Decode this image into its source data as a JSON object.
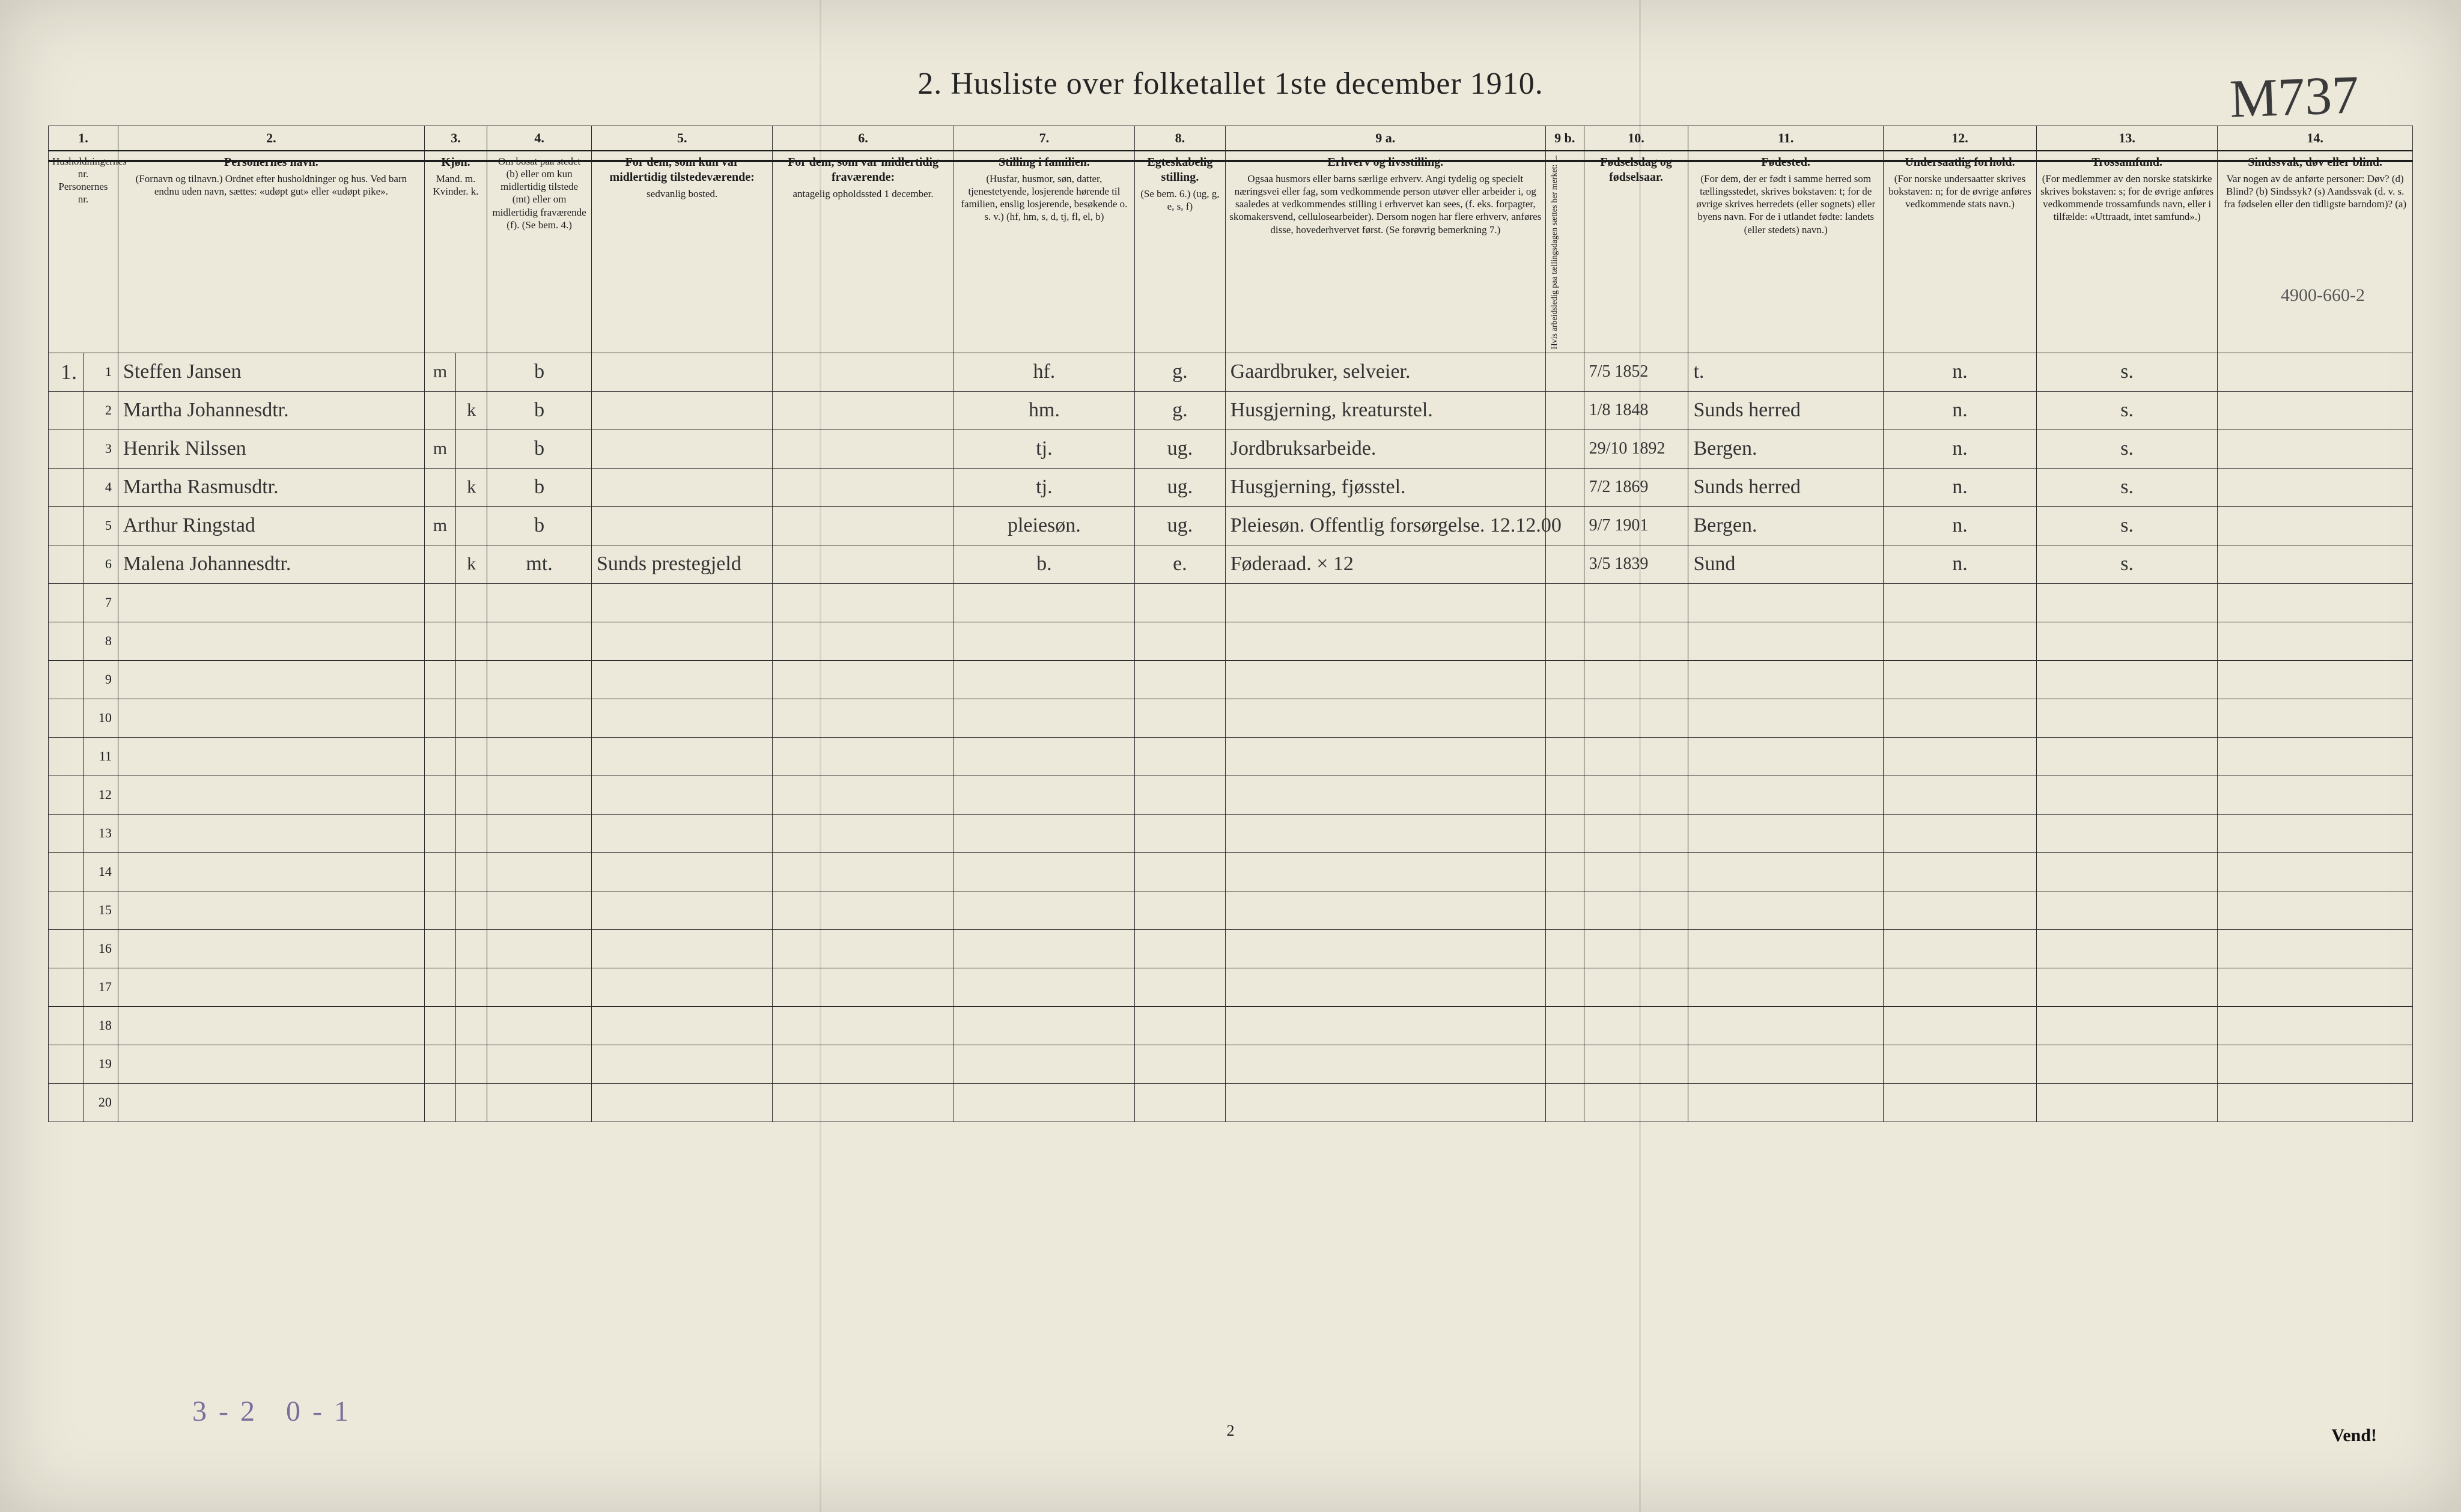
{
  "title": "2.  Husliste over folketallet 1ste december 1910.",
  "corner_note": "M737",
  "above_header_note": "4900-660-2",
  "bottom_left_note": "3-2 0-1",
  "page_number": "2",
  "vend_label": "Vend!",
  "columns": [
    {
      "no": "1.",
      "head": "",
      "sub": "Husholdningernes nr.  Personernes nr."
    },
    {
      "no": "2.",
      "head": "Personernes navn.",
      "sub": "(Fornavn og tilnavn.) Ordnet efter husholdninger og hus. Ved barn endnu uden navn, sættes: «udøpt gut» eller «udøpt pike»."
    },
    {
      "no": "3.",
      "head": "Kjøn.",
      "sub": "Mand. m.   Kvinder. k."
    },
    {
      "no": "4.",
      "head": "Om bosat paa stedet (b) eller om kun midlertidig tilstede (mt) eller om midlertidig fraværende (f). (Se bem. 4.)",
      "sub": ""
    },
    {
      "no": "5.",
      "head": "For dem, som kun var midlertidig tilstedeværende:",
      "sub": "sedvanlig bosted."
    },
    {
      "no": "6.",
      "head": "For dem, som var midlertidig fraværende:",
      "sub": "antagelig opholdssted 1 december."
    },
    {
      "no": "7.",
      "head": "Stilling i familien.",
      "sub": "(Husfar, husmor, søn, datter, tjenestetyende, losjerende hørende til familien, enslig losjerende, besøkende o. s. v.) (hf, hm, s, d, tj, fl, el, b)"
    },
    {
      "no": "8.",
      "head": "Egteskabelig stilling.",
      "sub": "(Se bem. 6.) (ug, g, e, s, f)"
    },
    {
      "no": "9 a.",
      "head": "Erhverv og livsstilling.",
      "sub": "Ogsaa husmors eller barns særlige erhverv. Angi tydelig og specielt næringsvei eller fag, som vedkommende person utøver eller arbeider i, og saaledes at vedkommendes stilling i erhvervet kan sees, (f. eks. forpagter, skomakersvend, cellulosearbeider). Dersom nogen har flere erhverv, anføres disse, hovederhvervet først. (Se forøvrig bemerkning 7.)"
    },
    {
      "no": "9 b.",
      "head": "",
      "sub": "Hvis arbeidsledig paa tællingsdagen sættes her merket: L."
    },
    {
      "no": "10.",
      "head": "Fødselsdag og fødselsaar.",
      "sub": ""
    },
    {
      "no": "11.",
      "head": "Fødested.",
      "sub": "(For dem, der er født i samme herred som tællingsstedet, skrives bokstaven: t; for de øvrige skrives herredets (eller sognets) eller byens navn. For de i utlandet fødte: landets (eller stedets) navn.)"
    },
    {
      "no": "12.",
      "head": "Undersaatlig forhold.",
      "sub": "(For norske undersaatter skrives bokstaven: n; for de øvrige anføres vedkommende stats navn.)"
    },
    {
      "no": "13.",
      "head": "Trossamfund.",
      "sub": "(For medlemmer av den norske statskirke skrives bokstaven: s; for de øvrige anføres vedkommende trossamfunds navn, eller i tilfælde: «Uttraadt, intet samfund».)"
    },
    {
      "no": "14.",
      "head": "Sindssvak, døv eller blind.",
      "sub": "Var nogen av de anførte personer: Døv? (d) Blind? (b) Sindssyk? (s) Aandssvak (d. v. s. fra fødselen eller den tidligste barndom)? (a)"
    }
  ],
  "rows": [
    {
      "h": "1.",
      "n": "1",
      "name": "Steffen Jansen",
      "mk": "m",
      "b": "b",
      "c5": "",
      "c6": "",
      "fam": "hf.",
      "egt": "g.",
      "erh": "Gaardbruker, selveier.",
      "l": "",
      "dob": "7/5 1852",
      "fod": "t.",
      "und": "n.",
      "tro": "s.",
      "sind": ""
    },
    {
      "h": "",
      "n": "2",
      "name": "Martha Johannesdtr.",
      "mk": "k",
      "b": "b",
      "c5": "",
      "c6": "",
      "fam": "hm.",
      "egt": "g.",
      "erh": "Husgjerning, kreaturstel.",
      "l": "",
      "dob": "1/8 1848",
      "fod": "Sunds herred",
      "und": "n.",
      "tro": "s.",
      "sind": ""
    },
    {
      "h": "",
      "n": "3",
      "name": "Henrik Nilssen",
      "mk": "m",
      "b": "b",
      "c5": "",
      "c6": "",
      "fam": "tj.",
      "egt": "ug.",
      "erh": "Jordbruksarbeide.",
      "l": "",
      "dob": "29/10 1892",
      "fod": "Bergen.",
      "und": "n.",
      "tro": "s.",
      "sind": ""
    },
    {
      "h": "",
      "n": "4",
      "name": "Martha Rasmusdtr.",
      "mk": "k",
      "b": "b",
      "c5": "",
      "c6": "",
      "fam": "tj.",
      "egt": "ug.",
      "erh": "Husgjerning, fjøsstel.",
      "l": "",
      "dob": "7/2 1869",
      "fod": "Sunds herred",
      "und": "n.",
      "tro": "s.",
      "sind": ""
    },
    {
      "h": "",
      "n": "5",
      "name": "Arthur Ringstad",
      "mk": "m",
      "b": "b",
      "c5": "",
      "c6": "",
      "fam": "pleiesøn.",
      "egt": "ug.",
      "erh": "Pleiesøn. Offentlig forsørgelse. 12.12.00",
      "l": "",
      "dob": "9/7 1901",
      "fod": "Bergen.",
      "und": "n.",
      "tro": "s.",
      "sind": ""
    },
    {
      "h": "",
      "n": "6",
      "name": "Malena Johannesdtr.",
      "mk": "k",
      "b": "mt.",
      "c5": "Sunds prestegjeld",
      "c6": "",
      "fam": "b.",
      "egt": "e.",
      "erh": "Føderaad.  × 12",
      "l": "",
      "dob": "3/5 1839",
      "fod": "Sund",
      "und": "n.",
      "tro": "s.",
      "sind": ""
    }
  ],
  "blank_rows": 14,
  "row_numbers_continue_from": 7,
  "colors": {
    "paper": "#ece8da",
    "ink": "#1d1d1d",
    "handwriting": "#333333",
    "purple_note": "#7a6e9c"
  }
}
